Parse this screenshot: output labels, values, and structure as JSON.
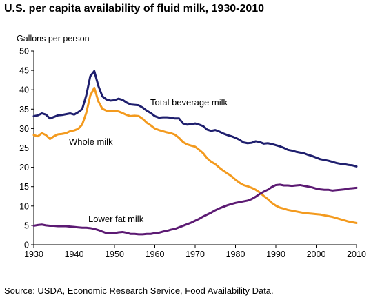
{
  "chart_data": {
    "type": "line",
    "title": "U.S. per capita availability of fluid milk, 1930-2010",
    "ylabel": "Gallons per person",
    "xlabel": "",
    "source": "Source: USDA, Economic Research Service, Food Availability Data.",
    "xlim": [
      1930,
      2010
    ],
    "ylim": [
      0,
      50
    ],
    "x_ticks": [
      1930,
      1940,
      1950,
      1960,
      1970,
      1980,
      1990,
      2000,
      2010
    ],
    "y_ticks": [
      0,
      5,
      10,
      15,
      20,
      25,
      30,
      35,
      40,
      45,
      50
    ],
    "grid": false,
    "series": [
      {
        "name": "Total beverage milk",
        "color": "#1f1f6e",
        "points": [
          [
            1930,
            33.2
          ],
          [
            1931,
            33.4
          ],
          [
            1932,
            33.9
          ],
          [
            1933,
            33.6
          ],
          [
            1934,
            32.6
          ],
          [
            1935,
            33.0
          ],
          [
            1936,
            33.4
          ],
          [
            1937,
            33.5
          ],
          [
            1938,
            33.7
          ],
          [
            1939,
            33.9
          ],
          [
            1940,
            33.6
          ],
          [
            1941,
            34.2
          ],
          [
            1942,
            35.0
          ],
          [
            1943,
            38.5
          ],
          [
            1944,
            43.5
          ],
          [
            1945,
            44.8
          ],
          [
            1946,
            41.0
          ],
          [
            1947,
            38.3
          ],
          [
            1948,
            37.5
          ],
          [
            1949,
            37.2
          ],
          [
            1950,
            37.3
          ],
          [
            1951,
            37.7
          ],
          [
            1952,
            37.4
          ],
          [
            1953,
            36.7
          ],
          [
            1954,
            36.2
          ],
          [
            1955,
            36.1
          ],
          [
            1956,
            36.0
          ],
          [
            1957,
            35.4
          ],
          [
            1958,
            34.6
          ],
          [
            1959,
            34.0
          ],
          [
            1960,
            33.2
          ],
          [
            1961,
            32.8
          ],
          [
            1962,
            32.9
          ],
          [
            1963,
            32.9
          ],
          [
            1964,
            32.8
          ],
          [
            1965,
            32.6
          ],
          [
            1966,
            32.6
          ],
          [
            1967,
            31.3
          ],
          [
            1968,
            31.0
          ],
          [
            1969,
            31.1
          ],
          [
            1970,
            31.3
          ],
          [
            1971,
            31.0
          ],
          [
            1972,
            30.6
          ],
          [
            1973,
            29.7
          ],
          [
            1974,
            29.4
          ],
          [
            1975,
            29.6
          ],
          [
            1976,
            29.2
          ],
          [
            1977,
            28.7
          ],
          [
            1978,
            28.3
          ],
          [
            1979,
            28.0
          ],
          [
            1980,
            27.6
          ],
          [
            1981,
            27.1
          ],
          [
            1982,
            26.4
          ],
          [
            1983,
            26.2
          ],
          [
            1984,
            26.3
          ],
          [
            1985,
            26.7
          ],
          [
            1986,
            26.5
          ],
          [
            1987,
            26.1
          ],
          [
            1988,
            26.2
          ],
          [
            1989,
            26.0
          ],
          [
            1990,
            25.7
          ],
          [
            1991,
            25.4
          ],
          [
            1992,
            25.0
          ],
          [
            1993,
            24.5
          ],
          [
            1994,
            24.3
          ],
          [
            1995,
            24.0
          ],
          [
            1996,
            23.8
          ],
          [
            1997,
            23.6
          ],
          [
            1998,
            23.2
          ],
          [
            1999,
            22.9
          ],
          [
            2000,
            22.5
          ],
          [
            2001,
            22.1
          ],
          [
            2002,
            21.9
          ],
          [
            2003,
            21.7
          ],
          [
            2004,
            21.4
          ],
          [
            2005,
            21.1
          ],
          [
            2006,
            20.9
          ],
          [
            2007,
            20.8
          ],
          [
            2008,
            20.6
          ],
          [
            2009,
            20.5
          ],
          [
            2010,
            20.2
          ]
        ]
      },
      {
        "name": "Whole milk",
        "color": "#f39a1e",
        "points": [
          [
            1930,
            28.3
          ],
          [
            1931,
            28.0
          ],
          [
            1932,
            28.8
          ],
          [
            1933,
            28.3
          ],
          [
            1934,
            27.3
          ],
          [
            1935,
            28.0
          ],
          [
            1936,
            28.5
          ],
          [
            1937,
            28.6
          ],
          [
            1938,
            28.8
          ],
          [
            1939,
            29.3
          ],
          [
            1940,
            29.5
          ],
          [
            1941,
            29.9
          ],
          [
            1942,
            31.0
          ],
          [
            1943,
            34.0
          ],
          [
            1944,
            38.5
          ],
          [
            1945,
            40.5
          ],
          [
            1946,
            37.0
          ],
          [
            1947,
            35.1
          ],
          [
            1948,
            34.6
          ],
          [
            1949,
            34.5
          ],
          [
            1950,
            34.6
          ],
          [
            1951,
            34.4
          ],
          [
            1952,
            34.0
          ],
          [
            1953,
            33.5
          ],
          [
            1954,
            33.2
          ],
          [
            1955,
            33.3
          ],
          [
            1956,
            33.2
          ],
          [
            1957,
            32.5
          ],
          [
            1958,
            31.5
          ],
          [
            1959,
            30.8
          ],
          [
            1960,
            30.0
          ],
          [
            1961,
            29.6
          ],
          [
            1962,
            29.3
          ],
          [
            1963,
            29.0
          ],
          [
            1964,
            28.8
          ],
          [
            1965,
            28.4
          ],
          [
            1966,
            27.6
          ],
          [
            1967,
            26.5
          ],
          [
            1968,
            25.9
          ],
          [
            1969,
            25.6
          ],
          [
            1970,
            25.3
          ],
          [
            1971,
            24.5
          ],
          [
            1972,
            23.6
          ],
          [
            1973,
            22.3
          ],
          [
            1974,
            21.4
          ],
          [
            1975,
            20.8
          ],
          [
            1976,
            19.9
          ],
          [
            1977,
            19.1
          ],
          [
            1978,
            18.4
          ],
          [
            1979,
            17.7
          ],
          [
            1980,
            16.8
          ],
          [
            1981,
            16.0
          ],
          [
            1982,
            15.4
          ],
          [
            1983,
            15.1
          ],
          [
            1984,
            14.7
          ],
          [
            1985,
            14.2
          ],
          [
            1986,
            13.5
          ],
          [
            1987,
            12.6
          ],
          [
            1988,
            11.8
          ],
          [
            1989,
            10.8
          ],
          [
            1990,
            10.1
          ],
          [
            1991,
            9.6
          ],
          [
            1992,
            9.3
          ],
          [
            1993,
            9.0
          ],
          [
            1994,
            8.8
          ],
          [
            1995,
            8.6
          ],
          [
            1996,
            8.4
          ],
          [
            1997,
            8.2
          ],
          [
            1998,
            8.1
          ],
          [
            1999,
            8.0
          ],
          [
            2000,
            7.9
          ],
          [
            2001,
            7.8
          ],
          [
            2002,
            7.6
          ],
          [
            2003,
            7.4
          ],
          [
            2004,
            7.2
          ],
          [
            2005,
            6.9
          ],
          [
            2006,
            6.6
          ],
          [
            2007,
            6.3
          ],
          [
            2008,
            6.0
          ],
          [
            2009,
            5.8
          ],
          [
            2010,
            5.6
          ]
        ]
      },
      {
        "name": "Lower fat milk",
        "color": "#5c1a73",
        "points": [
          [
            1930,
            4.9
          ],
          [
            1931,
            5.1
          ],
          [
            1932,
            5.2
          ],
          [
            1933,
            5.0
          ],
          [
            1934,
            4.9
          ],
          [
            1935,
            4.9
          ],
          [
            1936,
            4.8
          ],
          [
            1937,
            4.8
          ],
          [
            1938,
            4.8
          ],
          [
            1939,
            4.7
          ],
          [
            1940,
            4.6
          ],
          [
            1941,
            4.5
          ],
          [
            1942,
            4.4
          ],
          [
            1943,
            4.4
          ],
          [
            1944,
            4.3
          ],
          [
            1945,
            4.1
          ],
          [
            1946,
            3.8
          ],
          [
            1947,
            3.4
          ],
          [
            1948,
            3.0
          ],
          [
            1949,
            3.0
          ],
          [
            1950,
            3.0
          ],
          [
            1951,
            3.2
          ],
          [
            1952,
            3.3
          ],
          [
            1953,
            3.1
          ],
          [
            1954,
            2.8
          ],
          [
            1955,
            2.8
          ],
          [
            1956,
            2.7
          ],
          [
            1957,
            2.7
          ],
          [
            1958,
            2.8
          ],
          [
            1959,
            2.8
          ],
          [
            1960,
            3.0
          ],
          [
            1961,
            3.1
          ],
          [
            1962,
            3.4
          ],
          [
            1963,
            3.6
          ],
          [
            1964,
            3.9
          ],
          [
            1965,
            4.1
          ],
          [
            1966,
            4.5
          ],
          [
            1967,
            4.9
          ],
          [
            1968,
            5.3
          ],
          [
            1969,
            5.7
          ],
          [
            1970,
            6.2
          ],
          [
            1971,
            6.7
          ],
          [
            1972,
            7.3
          ],
          [
            1973,
            7.8
          ],
          [
            1974,
            8.3
          ],
          [
            1975,
            8.9
          ],
          [
            1976,
            9.4
          ],
          [
            1977,
            9.8
          ],
          [
            1978,
            10.2
          ],
          [
            1979,
            10.5
          ],
          [
            1980,
            10.8
          ],
          [
            1981,
            11.0
          ],
          [
            1982,
            11.2
          ],
          [
            1983,
            11.4
          ],
          [
            1984,
            11.8
          ],
          [
            1985,
            12.4
          ],
          [
            1986,
            13.1
          ],
          [
            1987,
            13.7
          ],
          [
            1988,
            14.2
          ],
          [
            1989,
            14.9
          ],
          [
            1990,
            15.4
          ],
          [
            1991,
            15.5
          ],
          [
            1992,
            15.3
          ],
          [
            1993,
            15.3
          ],
          [
            1994,
            15.2
          ],
          [
            1995,
            15.3
          ],
          [
            1996,
            15.4
          ],
          [
            1997,
            15.2
          ],
          [
            1998,
            15.0
          ],
          [
            1999,
            14.8
          ],
          [
            2000,
            14.5
          ],
          [
            2001,
            14.3
          ],
          [
            2002,
            14.2
          ],
          [
            2003,
            14.2
          ],
          [
            2004,
            14.0
          ],
          [
            2005,
            14.1
          ],
          [
            2006,
            14.2
          ],
          [
            2007,
            14.3
          ],
          [
            2008,
            14.5
          ],
          [
            2009,
            14.6
          ],
          [
            2010,
            14.7
          ]
        ]
      }
    ]
  }
}
